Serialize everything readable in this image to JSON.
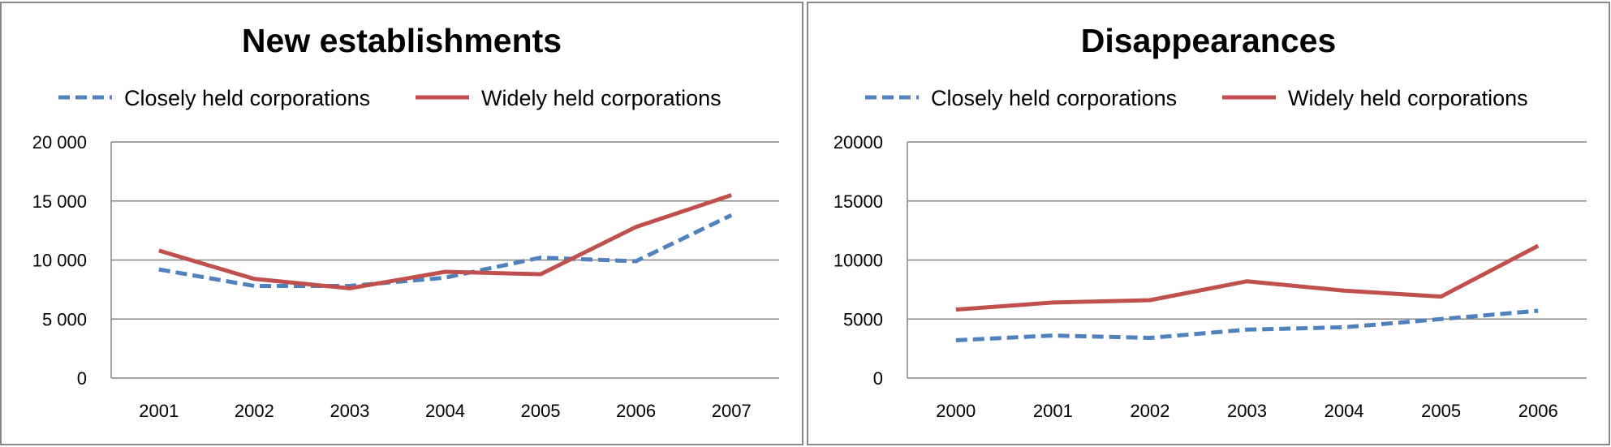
{
  "chart_data": [
    {
      "type": "line",
      "title": "New establishments",
      "categories": [
        "2001",
        "2002",
        "2003",
        "2004",
        "2005",
        "2006",
        "2007"
      ],
      "y_ticks": [
        "0",
        "5 000",
        "10 000",
        "15 000",
        "20 000"
      ],
      "ylim": [
        0,
        20000
      ],
      "grid": "horizontal",
      "legend": "top",
      "series": [
        {
          "name": "Closely held corporations",
          "style": "dashed",
          "color": "#4F81BD",
          "values": [
            9200,
            7800,
            7800,
            8500,
            10200,
            9900,
            13800
          ]
        },
        {
          "name": "Widely held corporations",
          "style": "solid",
          "color": "#C0504D",
          "values": [
            10800,
            8400,
            7600,
            9000,
            8800,
            12800,
            15500
          ]
        }
      ]
    },
    {
      "type": "line",
      "title": "Disappearances",
      "categories": [
        "2000",
        "2001",
        "2002",
        "2003",
        "2004",
        "2005",
        "2006"
      ],
      "y_ticks": [
        "0",
        "5000",
        "10000",
        "15000",
        "20000"
      ],
      "ylim": [
        0,
        20000
      ],
      "grid": "horizontal",
      "legend": "top",
      "series": [
        {
          "name": "Closely held corporations",
          "style": "dashed",
          "color": "#4F81BD",
          "values": [
            3200,
            3600,
            3400,
            4100,
            4300,
            5000,
            5700
          ]
        },
        {
          "name": "Widely held corporations",
          "style": "solid",
          "color": "#C0504D",
          "values": [
            5800,
            6400,
            6600,
            8200,
            7400,
            6900,
            11200
          ]
        }
      ]
    }
  ]
}
